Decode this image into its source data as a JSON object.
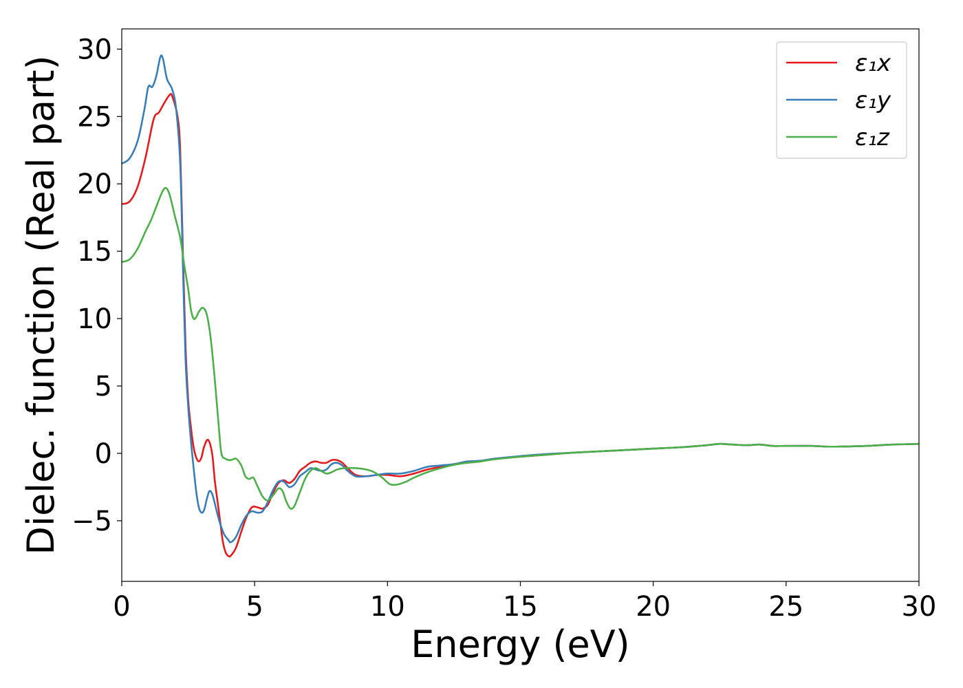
{
  "chart_data": {
    "type": "line",
    "title": "",
    "xlabel": "Energy (eV)",
    "ylabel": "Dielec. function (Real part)",
    "xlim": [
      0,
      30
    ],
    "ylim": [
      -9.5,
      31.5
    ],
    "xticks": [
      0,
      5,
      10,
      15,
      20,
      25,
      30
    ],
    "xtick_labels": [
      "0",
      "5",
      "10",
      "15",
      "20",
      "25",
      "30"
    ],
    "yticks": [
      -5,
      0,
      5,
      10,
      15,
      20,
      25,
      30
    ],
    "ytick_labels": [
      "−5",
      "0",
      "5",
      "10",
      "15",
      "20",
      "25",
      "30"
    ],
    "grid": false,
    "legend_position": "top-right",
    "series": [
      {
        "name": "ε₁x",
        "color": "#e41a1c",
        "points": [
          [
            0,
            18.5
          ],
          [
            0.3,
            18.7
          ],
          [
            0.6,
            19.8
          ],
          [
            0.9,
            22.0
          ],
          [
            1.2,
            24.8
          ],
          [
            1.4,
            25.3
          ],
          [
            1.6,
            26.0
          ],
          [
            1.8,
            26.6
          ],
          [
            1.9,
            26.5
          ],
          [
            2.1,
            25.0
          ],
          [
            2.2,
            22.5
          ],
          [
            2.3,
            15.0
          ],
          [
            2.4,
            8.0
          ],
          [
            2.5,
            4.0
          ],
          [
            2.6,
            2.0
          ],
          [
            2.7,
            0.5
          ],
          [
            2.8,
            -0.3
          ],
          [
            2.9,
            -0.6
          ],
          [
            3.0,
            -0.3
          ],
          [
            3.1,
            0.5
          ],
          [
            3.25,
            1.0
          ],
          [
            3.4,
            0.0
          ],
          [
            3.5,
            -2.0
          ],
          [
            3.6,
            -3.5
          ],
          [
            3.7,
            -5.0
          ],
          [
            3.8,
            -6.5
          ],
          [
            3.9,
            -7.3
          ],
          [
            4.0,
            -7.6
          ],
          [
            4.1,
            -7.6
          ],
          [
            4.3,
            -7.0
          ],
          [
            4.5,
            -5.8
          ],
          [
            4.7,
            -4.7
          ],
          [
            4.9,
            -4.0
          ],
          [
            5.1,
            -4.0
          ],
          [
            5.3,
            -4.1
          ],
          [
            5.5,
            -3.8
          ],
          [
            5.7,
            -2.9
          ],
          [
            5.9,
            -2.2
          ],
          [
            6.1,
            -2.0
          ],
          [
            6.3,
            -2.2
          ],
          [
            6.5,
            -1.9
          ],
          [
            6.7,
            -1.3
          ],
          [
            6.9,
            -1.0
          ],
          [
            7.1,
            -0.7
          ],
          [
            7.3,
            -0.6
          ],
          [
            7.5,
            -0.7
          ],
          [
            7.7,
            -0.7
          ],
          [
            7.9,
            -0.5
          ],
          [
            8.1,
            -0.5
          ],
          [
            8.3,
            -0.7
          ],
          [
            8.5,
            -1.1
          ],
          [
            8.8,
            -1.6
          ],
          [
            9.2,
            -1.7
          ],
          [
            9.6,
            -1.6
          ],
          [
            10.0,
            -1.6
          ],
          [
            10.5,
            -1.7
          ],
          [
            11.0,
            -1.5
          ],
          [
            11.5,
            -1.2
          ],
          [
            12.0,
            -1.0
          ],
          [
            12.5,
            -0.8
          ],
          [
            13.0,
            -0.7
          ],
          [
            13.5,
            -0.6
          ],
          [
            14.0,
            -0.4
          ],
          [
            15.0,
            -0.25
          ],
          [
            16.0,
            -0.1
          ],
          [
            17.0,
            0.05
          ],
          [
            18.0,
            0.15
          ],
          [
            19.0,
            0.25
          ],
          [
            20.0,
            0.35
          ],
          [
            21.0,
            0.45
          ],
          [
            22.0,
            0.6
          ],
          [
            22.5,
            0.7
          ],
          [
            23.0,
            0.65
          ],
          [
            23.5,
            0.6
          ],
          [
            24.0,
            0.65
          ],
          [
            24.5,
            0.55
          ],
          [
            25.0,
            0.55
          ],
          [
            26.0,
            0.55
          ],
          [
            26.5,
            0.5
          ],
          [
            27.0,
            0.5
          ],
          [
            28.0,
            0.55
          ],
          [
            29.0,
            0.65
          ],
          [
            30.0,
            0.7
          ]
        ]
      },
      {
        "name": "ε₁y",
        "color": "#377eb8",
        "points": [
          [
            0,
            21.5
          ],
          [
            0.3,
            21.9
          ],
          [
            0.6,
            23.2
          ],
          [
            0.85,
            25.5
          ],
          [
            1.0,
            27.2
          ],
          [
            1.15,
            27.2
          ],
          [
            1.3,
            28.0
          ],
          [
            1.45,
            29.4
          ],
          [
            1.55,
            29.3
          ],
          [
            1.7,
            27.8
          ],
          [
            1.9,
            27.0
          ],
          [
            2.05,
            25.5
          ],
          [
            2.2,
            21.5
          ],
          [
            2.3,
            14.0
          ],
          [
            2.4,
            7.0
          ],
          [
            2.5,
            3.5
          ],
          [
            2.6,
            1.0
          ],
          [
            2.7,
            -1.0
          ],
          [
            2.8,
            -2.8
          ],
          [
            2.9,
            -4.0
          ],
          [
            3.0,
            -4.4
          ],
          [
            3.1,
            -4.2
          ],
          [
            3.2,
            -3.4
          ],
          [
            3.3,
            -2.8
          ],
          [
            3.4,
            -3.0
          ],
          [
            3.5,
            -3.7
          ],
          [
            3.6,
            -4.5
          ],
          [
            3.7,
            -5.2
          ],
          [
            3.85,
            -6.0
          ],
          [
            4.0,
            -6.4
          ],
          [
            4.1,
            -6.6
          ],
          [
            4.3,
            -6.2
          ],
          [
            4.5,
            -5.3
          ],
          [
            4.7,
            -4.6
          ],
          [
            4.9,
            -4.3
          ],
          [
            5.1,
            -4.4
          ],
          [
            5.3,
            -4.3
          ],
          [
            5.5,
            -3.6
          ],
          [
            5.7,
            -2.7
          ],
          [
            5.9,
            -2.1
          ],
          [
            6.1,
            -2.1
          ],
          [
            6.3,
            -2.5
          ],
          [
            6.5,
            -2.3
          ],
          [
            6.7,
            -1.7
          ],
          [
            6.9,
            -1.4
          ],
          [
            7.1,
            -1.1
          ],
          [
            7.3,
            -1.2
          ],
          [
            7.5,
            -1.3
          ],
          [
            7.7,
            -1.2
          ],
          [
            7.9,
            -0.8
          ],
          [
            8.1,
            -0.7
          ],
          [
            8.3,
            -0.9
          ],
          [
            8.5,
            -1.3
          ],
          [
            8.8,
            -1.7
          ],
          [
            9.2,
            -1.7
          ],
          [
            9.6,
            -1.6
          ],
          [
            10.0,
            -1.5
          ],
          [
            10.5,
            -1.5
          ],
          [
            11.0,
            -1.3
          ],
          [
            11.5,
            -1.0
          ],
          [
            12.0,
            -0.9
          ],
          [
            12.5,
            -0.8
          ],
          [
            13.0,
            -0.6
          ],
          [
            13.5,
            -0.55
          ],
          [
            14.0,
            -0.4
          ],
          [
            15.0,
            -0.2
          ],
          [
            16.0,
            -0.05
          ],
          [
            17.0,
            0.05
          ],
          [
            18.0,
            0.15
          ],
          [
            19.0,
            0.25
          ],
          [
            20.0,
            0.35
          ],
          [
            21.0,
            0.45
          ],
          [
            22.0,
            0.6
          ],
          [
            22.5,
            0.7
          ],
          [
            23.0,
            0.65
          ],
          [
            23.5,
            0.6
          ],
          [
            24.0,
            0.65
          ],
          [
            24.5,
            0.55
          ],
          [
            25.0,
            0.55
          ],
          [
            26.0,
            0.55
          ],
          [
            26.5,
            0.5
          ],
          [
            27.0,
            0.5
          ],
          [
            28.0,
            0.55
          ],
          [
            29.0,
            0.65
          ],
          [
            30.0,
            0.7
          ]
        ]
      },
      {
        "name": "ε₁z",
        "color": "#4daf4a",
        "points": [
          [
            0,
            14.2
          ],
          [
            0.3,
            14.4
          ],
          [
            0.6,
            15.2
          ],
          [
            0.9,
            16.5
          ],
          [
            1.1,
            17.3
          ],
          [
            1.3,
            18.3
          ],
          [
            1.5,
            19.3
          ],
          [
            1.65,
            19.7
          ],
          [
            1.8,
            19.2
          ],
          [
            2.0,
            17.6
          ],
          [
            2.2,
            16.0
          ],
          [
            2.35,
            14.0
          ],
          [
            2.5,
            12.2
          ],
          [
            2.6,
            10.7
          ],
          [
            2.7,
            10.0
          ],
          [
            2.8,
            10.1
          ],
          [
            2.9,
            10.5
          ],
          [
            3.05,
            10.8
          ],
          [
            3.2,
            10.3
          ],
          [
            3.35,
            8.5
          ],
          [
            3.5,
            5.5
          ],
          [
            3.65,
            2.0
          ],
          [
            3.75,
            0.0
          ],
          [
            3.9,
            -0.4
          ],
          [
            4.1,
            -0.5
          ],
          [
            4.3,
            -0.4
          ],
          [
            4.5,
            -0.9
          ],
          [
            4.65,
            -1.7
          ],
          [
            4.8,
            -1.9
          ],
          [
            4.95,
            -1.8
          ],
          [
            5.1,
            -2.4
          ],
          [
            5.3,
            -3.2
          ],
          [
            5.5,
            -3.5
          ],
          [
            5.7,
            -3.1
          ],
          [
            5.9,
            -2.6
          ],
          [
            6.05,
            -2.8
          ],
          [
            6.2,
            -3.6
          ],
          [
            6.35,
            -4.1
          ],
          [
            6.5,
            -3.9
          ],
          [
            6.7,
            -2.9
          ],
          [
            6.9,
            -1.9
          ],
          [
            7.1,
            -1.3
          ],
          [
            7.3,
            -1.1
          ],
          [
            7.5,
            -1.3
          ],
          [
            7.7,
            -1.5
          ],
          [
            7.9,
            -1.4
          ],
          [
            8.1,
            -1.2
          ],
          [
            8.4,
            -1.1
          ],
          [
            8.8,
            -1.1
          ],
          [
            9.2,
            -1.2
          ],
          [
            9.5,
            -1.4
          ],
          [
            9.8,
            -1.8
          ],
          [
            10.1,
            -2.3
          ],
          [
            10.4,
            -2.3
          ],
          [
            10.7,
            -2.1
          ],
          [
            11.0,
            -1.8
          ],
          [
            11.5,
            -1.4
          ],
          [
            12.0,
            -1.1
          ],
          [
            12.5,
            -0.85
          ],
          [
            13.0,
            -0.7
          ],
          [
            13.5,
            -0.6
          ],
          [
            14.0,
            -0.45
          ],
          [
            15.0,
            -0.25
          ],
          [
            16.0,
            -0.1
          ],
          [
            17.0,
            0.05
          ],
          [
            18.0,
            0.15
          ],
          [
            19.0,
            0.25
          ],
          [
            20.0,
            0.35
          ],
          [
            21.0,
            0.45
          ],
          [
            22.0,
            0.6
          ],
          [
            22.5,
            0.7
          ],
          [
            23.0,
            0.65
          ],
          [
            23.5,
            0.6
          ],
          [
            24.0,
            0.65
          ],
          [
            24.5,
            0.55
          ],
          [
            25.0,
            0.55
          ],
          [
            26.0,
            0.55
          ],
          [
            26.5,
            0.5
          ],
          [
            27.0,
            0.5
          ],
          [
            28.0,
            0.55
          ],
          [
            29.0,
            0.65
          ],
          [
            30.0,
            0.7
          ]
        ]
      }
    ]
  }
}
